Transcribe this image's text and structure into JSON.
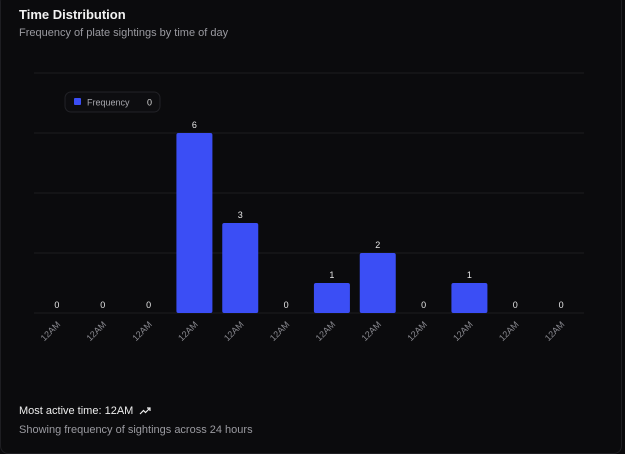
{
  "header": {
    "title": "Time Distribution",
    "subtitle": "Frequency of plate sightings by time of day"
  },
  "footer": {
    "most_active": "Most active time: 12AM",
    "icon": "trending-up-icon",
    "note": "Showing frequency of sightings across 24 hours"
  },
  "colors": {
    "bar": "#3b4ef5"
  },
  "chart_data": {
    "type": "bar",
    "title": "Time Distribution",
    "categories": [
      "12AM",
      "12AM",
      "12AM",
      "12AM",
      "12AM",
      "12AM",
      "12AM",
      "12AM",
      "12AM",
      "12AM",
      "12AM",
      "12AM"
    ],
    "values": [
      0,
      0,
      0,
      6,
      3,
      0,
      1,
      2,
      0,
      1,
      0,
      0
    ],
    "ylim": [
      0,
      8
    ],
    "grid": true,
    "legend": {
      "position": "top-left",
      "label": "Frequency",
      "value": "0"
    }
  }
}
